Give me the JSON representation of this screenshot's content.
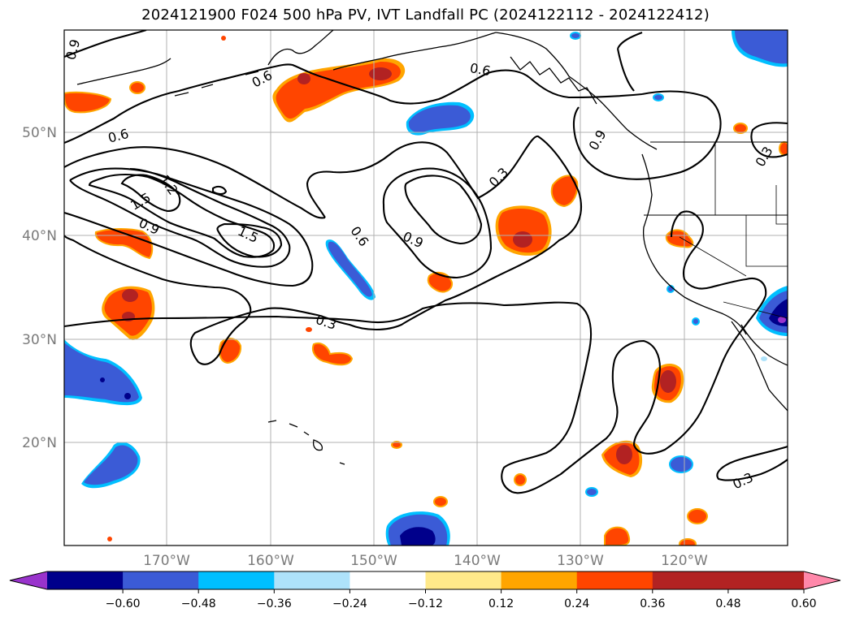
{
  "title": "2024121900 F024 500 hPa PV, IVT Landfall PC (2024122112 - 2024122412)",
  "lat_labels": [
    "50°N",
    "40°N",
    "30°N",
    "20°N"
  ],
  "lon_labels": [
    "170°W",
    "160°W",
    "150°W",
    "140°W",
    "130°W",
    "120°W"
  ],
  "contour_labels": [
    "0.9",
    "0.6",
    "0.6",
    "0.6",
    "1.5",
    "1.2",
    "0.9",
    "1.5",
    "0.6",
    "0.9",
    "0.3",
    "0.3",
    "0.9",
    "0.3",
    "0.3"
  ],
  "colorbar": {
    "ticks": [
      "−0.60",
      "−0.48",
      "−0.36",
      "−0.24",
      "−0.12",
      "0.12",
      "0.24",
      "0.36",
      "0.48",
      "0.60"
    ],
    "colors": [
      "#9933cc",
      "#00008b",
      "#3b5bd6",
      "#00bfff",
      "#aee2fa",
      "#ffffff",
      "#ffe98a",
      "#ffa500",
      "#ff4500",
      "#b22222",
      "#ff88aa"
    ]
  },
  "palette": {
    "neg_strong": "#00008b",
    "neg_mid": "#3b5bd6",
    "neg_light": "#00bfff",
    "pos_mid": "#ff4500",
    "pos_strong": "#b22222",
    "pos_light": "#ffa500"
  }
}
